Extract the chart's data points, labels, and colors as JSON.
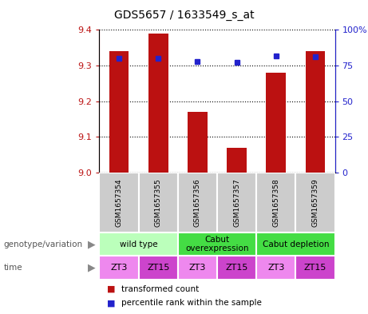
{
  "title": "GDS5657 / 1633549_s_at",
  "samples": [
    "GSM1657354",
    "GSM1657355",
    "GSM1657356",
    "GSM1657357",
    "GSM1657358",
    "GSM1657359"
  ],
  "transformed_counts": [
    9.34,
    9.39,
    9.17,
    9.07,
    9.28,
    9.34
  ],
  "percentile_ranks": [
    80,
    80,
    78,
    77,
    82,
    81
  ],
  "ylim_left": [
    9.0,
    9.4
  ],
  "ylim_right": [
    0,
    100
  ],
  "yticks_left": [
    9.0,
    9.1,
    9.2,
    9.3,
    9.4
  ],
  "yticks_right": [
    0,
    25,
    50,
    75,
    100
  ],
  "ytick_labels_right": [
    "0",
    "25",
    "50",
    "75",
    "100%"
  ],
  "bar_color": "#bb1111",
  "marker_color": "#2222cc",
  "geno_data": [
    {
      "label": "wild type",
      "start": 0,
      "end": 2,
      "color": "#bbffbb"
    },
    {
      "label": "Cabut\noverexpression",
      "start": 2,
      "end": 4,
      "color": "#44dd44"
    },
    {
      "label": "Cabut depletion",
      "start": 4,
      "end": 6,
      "color": "#44dd44"
    }
  ],
  "time_labels": [
    "ZT3",
    "ZT15",
    "ZT3",
    "ZT15",
    "ZT3",
    "ZT15"
  ],
  "time_colors": [
    "#ee88ee",
    "#cc44cc",
    "#ee88ee",
    "#cc44cc",
    "#ee88ee",
    "#cc44cc"
  ],
  "sample_box_color": "#cccccc",
  "bar_width": 0.5,
  "legend_red_label": "transformed count",
  "legend_blue_label": "percentile rank within the sample"
}
